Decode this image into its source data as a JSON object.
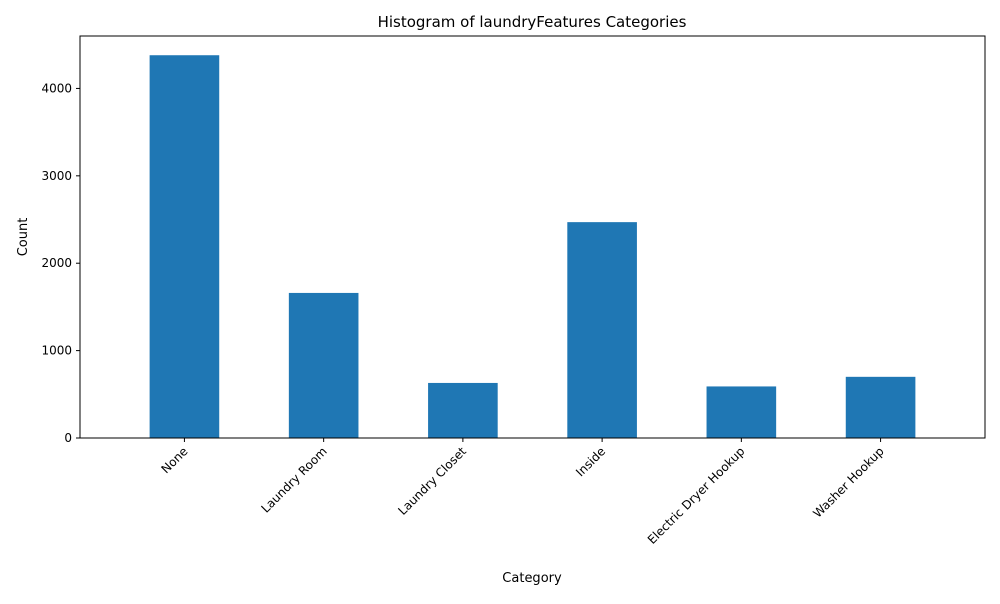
{
  "chart_data": {
    "type": "bar",
    "title": "Histogram of laundryFeatures Categories",
    "xlabel": "Category",
    "ylabel": "Count",
    "categories": [
      "None",
      "Laundry Room",
      "Laundry Closet",
      "Inside",
      "Electric Dryer Hookup",
      "Washer Hookup"
    ],
    "values": [
      4380,
      1660,
      630,
      2470,
      590,
      700
    ],
    "ylim": [
      0,
      4600
    ],
    "yticks": [
      0,
      1000,
      2000,
      3000,
      4000
    ],
    "grid": false,
    "bar_color": "#1f77b4"
  }
}
